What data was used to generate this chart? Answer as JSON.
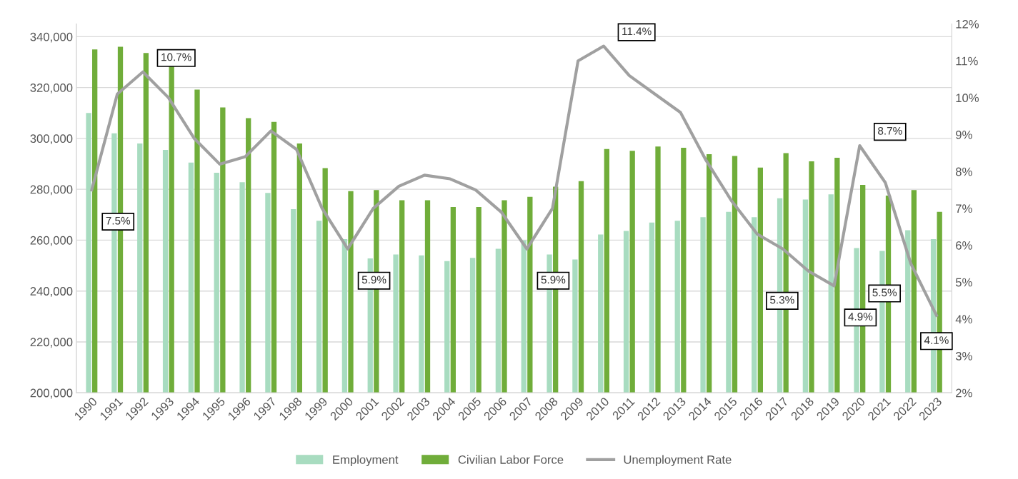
{
  "chart_data": {
    "type": "bar",
    "categories": [
      "1990",
      "1991",
      "1992",
      "1993",
      "1994",
      "1995",
      "1996",
      "1997",
      "1998",
      "1999",
      "2000",
      "2001",
      "2002",
      "2003",
      "2004",
      "2005",
      "2006",
      "2007",
      "2008",
      "2009",
      "2010",
      "2011",
      "2012",
      "2013",
      "2014",
      "2015",
      "2016",
      "2017",
      "2018",
      "2019",
      "2020",
      "2021",
      "2022",
      "2023"
    ],
    "series": [
      {
        "name": "Employment",
        "color": "#a8dcc0",
        "values": [
          310000,
          302000,
          298000,
          295500,
          290500,
          286500,
          282800,
          278600,
          272200,
          267600,
          260400,
          252800,
          254400,
          254000,
          251800,
          253000,
          256600,
          259900,
          254400,
          252400,
          262200,
          263600,
          266900,
          267600,
          269000,
          271100,
          269000,
          276500,
          276000,
          278000,
          256900,
          255800,
          263900,
          260400
        ]
      },
      {
        "name": "Civilian Labor Force",
        "color": "#70ad3a",
        "values": [
          335000,
          336000,
          333600,
          328800,
          319200,
          312200,
          308000,
          306500,
          298000,
          288300,
          279300,
          279700,
          275700,
          275700,
          273000,
          273000,
          275700,
          277000,
          281000,
          283200,
          295800,
          295100,
          296800,
          296300,
          293800,
          293100,
          288500,
          294200,
          291000,
          292400,
          281700,
          277500,
          279700,
          271100
        ]
      },
      {
        "name": "Unemployment Rate",
        "type": "line",
        "axis": "y2",
        "color": "#a0a0a0",
        "values": [
          7.5,
          10.1,
          10.7,
          10.0,
          8.9,
          8.2,
          8.4,
          9.1,
          8.6,
          7.0,
          5.9,
          7.0,
          7.6,
          7.9,
          7.8,
          7.5,
          6.9,
          5.9,
          7.0,
          11.0,
          11.4,
          10.6,
          10.1,
          9.6,
          8.3,
          7.2,
          6.3,
          5.9,
          5.3,
          4.9,
          8.7,
          7.7,
          5.5,
          4.1
        ],
        "value_labels": [
          "7.5%",
          null,
          "10.7%",
          null,
          null,
          null,
          null,
          null,
          null,
          null,
          "5.9%",
          null,
          null,
          null,
          null,
          null,
          null,
          "5.9%",
          null,
          null,
          "11.4%",
          null,
          null,
          null,
          null,
          null,
          null,
          null,
          "5.3%",
          "4.9%",
          "8.7%",
          null,
          "5.5%",
          "4.1%"
        ]
      }
    ],
    "ylim": [
      200000,
      345000
    ],
    "yticks": [
      {
        "value": 200000,
        "label": "200,000"
      },
      {
        "value": 220000,
        "label": "220,000"
      },
      {
        "value": 240000,
        "label": "240,000"
      },
      {
        "value": 260000,
        "label": "260,000"
      },
      {
        "value": 280000,
        "label": "280,000"
      },
      {
        "value": 300000,
        "label": "300,000"
      },
      {
        "value": 320000,
        "label": "320,000"
      },
      {
        "value": 340000,
        "label": "340,000"
      }
    ],
    "y2lim": [
      2,
      12
    ],
    "y2ticks": [
      {
        "value": 2,
        "label": "2%"
      },
      {
        "value": 3,
        "label": "3%"
      },
      {
        "value": 4,
        "label": "4%"
      },
      {
        "value": 5,
        "label": "5%"
      },
      {
        "value": 6,
        "label": "6%"
      },
      {
        "value": 7,
        "label": "7%"
      },
      {
        "value": 8,
        "label": "8%"
      },
      {
        "value": 9,
        "label": "9%"
      },
      {
        "value": 10,
        "label": "10%"
      },
      {
        "value": 11,
        "label": "11%"
      },
      {
        "value": 12,
        "label": "12%"
      }
    ],
    "grid": "y",
    "legend": "bottom"
  }
}
